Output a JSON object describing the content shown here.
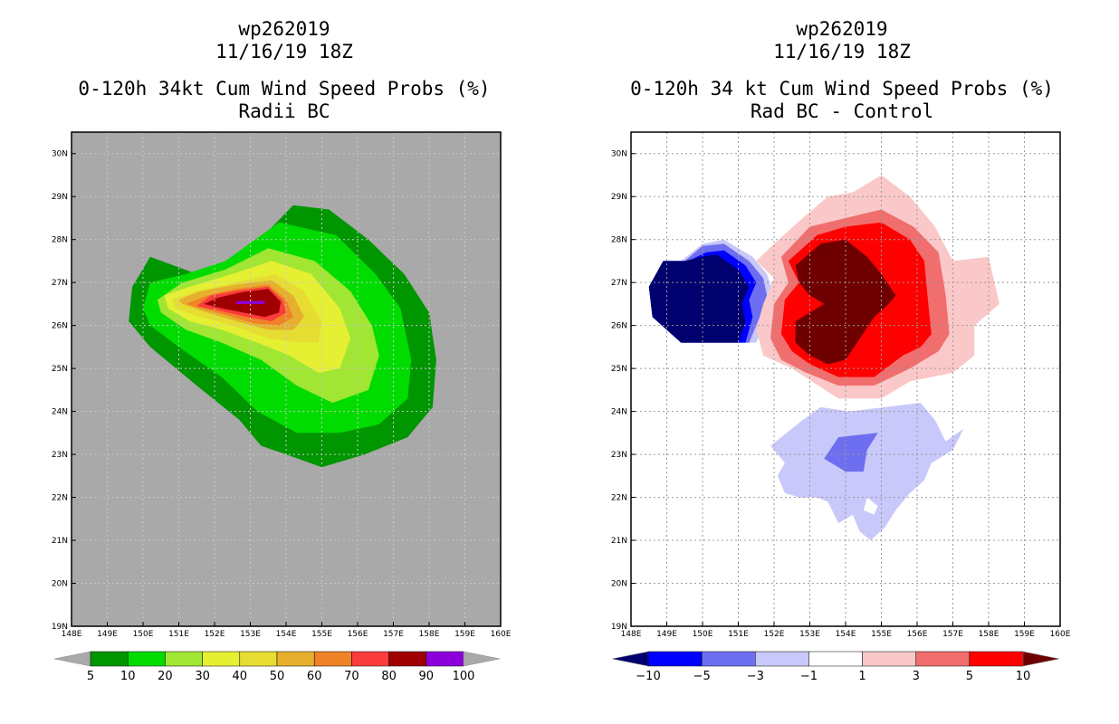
{
  "chart_data": [
    {
      "type": "contour-map",
      "title_lines": [
        "wp262019",
        "11/16/19 18Z",
        "0-120h 34kt Cum Wind Speed Probs (%)",
        "Radii BC"
      ],
      "x_ticks": [
        "148E",
        "149E",
        "150E",
        "151E",
        "152E",
        "153E",
        "154E",
        "155E",
        "156E",
        "157E",
        "158E",
        "159E",
        "160E"
      ],
      "y_ticks": [
        "19N",
        "20N",
        "21N",
        "22N",
        "23N",
        "24N",
        "25N",
        "26N",
        "27N",
        "28N",
        "29N",
        "30N"
      ],
      "xlim": [
        148,
        160
      ],
      "ylim": [
        19,
        30.5
      ],
      "background_color": "#a9a9a9",
      "levels": [
        5,
        10,
        20,
        30,
        40,
        50,
        60,
        70,
        80,
        90,
        100
      ],
      "colors": [
        "#009600",
        "#00dc00",
        "#a0e632",
        "#e6f032",
        "#e6dc32",
        "#e6af2d",
        "#f08228",
        "#fa3c3c",
        "#a00000",
        "#8c00dc"
      ],
      "level_labels": [
        "5",
        "10",
        "20",
        "30",
        "40",
        "50",
        "60",
        "70",
        "80",
        "90",
        "100"
      ]
    },
    {
      "type": "contour-map",
      "title_lines": [
        "wp262019",
        "11/16/19 18Z",
        "0-120h 34 kt Cum Wind Speed Probs (%)",
        "Rad BC - Control"
      ],
      "x_ticks": [
        "148E",
        "149E",
        "150E",
        "151E",
        "152E",
        "153E",
        "154E",
        "155E",
        "156E",
        "157E",
        "158E",
        "159E",
        "160E"
      ],
      "y_ticks": [
        "19N",
        "20N",
        "21N",
        "22N",
        "23N",
        "24N",
        "25N",
        "26N",
        "27N",
        "28N",
        "29N",
        "30N"
      ],
      "xlim": [
        148,
        160
      ],
      "ylim": [
        19,
        30.5
      ],
      "background_color": "#ffffff",
      "levels": [
        -10,
        -5,
        -3,
        -1,
        1,
        3,
        5,
        10
      ],
      "colors": [
        "#00006e",
        "#0000ff",
        "#6e6ef0",
        "#c8c8fa",
        "#ffffff",
        "#fac8c8",
        "#f06e6e",
        "#ff0000",
        "#6e0000"
      ],
      "level_labels": [
        "−10",
        "−5",
        "−3",
        "−1",
        "1",
        "3",
        "5",
        "10"
      ]
    }
  ]
}
